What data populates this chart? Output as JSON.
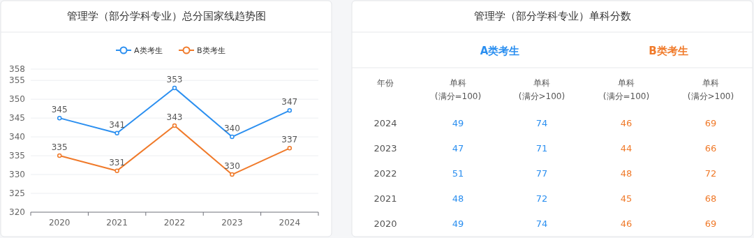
{
  "chart_data": [
    {
      "type": "line",
      "title": "管理学（部分学科专业）总分国家线趋势图",
      "categories": [
        "2020",
        "2021",
        "2022",
        "2023",
        "2024"
      ],
      "series": [
        {
          "name": "A类考生",
          "color": "#2b8ff0",
          "values": [
            345,
            341,
            353,
            340,
            347
          ]
        },
        {
          "name": "B类考生",
          "color": "#f07a2a",
          "values": [
            335,
            331,
            343,
            330,
            337
          ]
        }
      ],
      "ylim": [
        320,
        358
      ],
      "yticks": [
        320,
        325,
        330,
        335,
        340,
        345,
        350,
        355,
        358
      ],
      "grid": "y",
      "legend": "top",
      "marker": "circle",
      "line_style": "solid",
      "data_labels": true
    },
    {
      "type": "heatmap",
      "title": "管理学（部分学科专业）单科分数",
      "ylabel": "年份",
      "annotations": [
        "A类考生",
        "B类考生"
      ],
      "categories": [
        "单科 (满分=100)",
        "单科 (满分>100)",
        "单科 (满分=100)",
        "单科 (满分>100)"
      ],
      "y_categories": [
        "2024",
        "2023",
        "2022",
        "2021",
        "2020"
      ],
      "colors": [
        "#2b8ff0",
        "#2b8ff0",
        "#f07a2a",
        "#f07a2a"
      ],
      "data_labels": true,
      "cells": [
        [
          49,
          74,
          46,
          69
        ],
        [
          47,
          71,
          44,
          66
        ],
        [
          51,
          77,
          48,
          72
        ],
        [
          48,
          72,
          45,
          68
        ],
        [
          49,
          74,
          46,
          69
        ]
      ]
    }
  ]
}
